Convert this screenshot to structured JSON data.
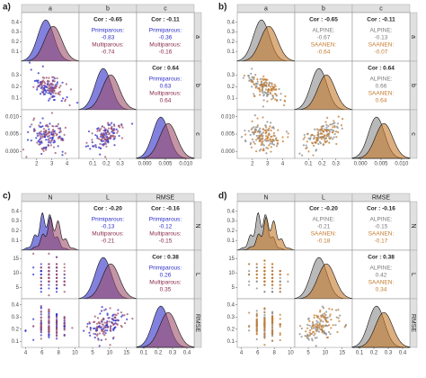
{
  "panels": [
    {
      "label": "a)",
      "vars": [
        "a",
        "b",
        "c"
      ],
      "colors": [
        "#2f2fc8",
        "#9c4f6c"
      ],
      "text_colors": [
        "#2f2fc8",
        "#8a2a4a"
      ],
      "density_lim": [
        0,
        0.5
      ],
      "density_ticks": [
        0.1,
        0.2,
        0.3,
        0.4
      ],
      "axes": [
        {
          "lim": [
            1,
            4.8
          ],
          "ticks": [
            2,
            3,
            4
          ]
        },
        {
          "lim": [
            0,
            0.42
          ],
          "ticks": [
            0.1,
            0.2,
            0.3
          ]
        },
        {
          "lim": [
            -0.002,
            0.012
          ],
          "ticks": [
            {
              "value": 0,
              "label": "0.000"
            },
            {
              "value": 0.005,
              "label": "0.005"
            },
            {
              "value": 0.01,
              "label": "0.010"
            }
          ]
        }
      ],
      "cor": [
        {
          "total": "Cor : -0.65",
          "g1": "Primiparous:",
          "v1": "-0.83",
          "g2": "Multiparous:",
          "v2": "-0.74"
        },
        {
          "total": "Cor : -0.11",
          "g1": "Primiparous:",
          "v1": "-0.36",
          "g2": "Multiparous:",
          "v2": "-0.16"
        },
        {
          "total": "Cor : 0.64",
          "g1": "Primiparous:",
          "v1": "0.63",
          "g2": "Multiparous:",
          "v2": "0.64"
        }
      ]
    },
    {
      "label": "b)",
      "vars": [
        "a",
        "b",
        "c"
      ],
      "colors": [
        "#8a8a8a",
        "#c47a2c"
      ],
      "text_colors": [
        "#7a7a7a",
        "#c47a2c"
      ],
      "density_lim": [
        0,
        0.5
      ],
      "density_ticks": [
        0.1,
        0.2,
        0.3,
        0.4
      ],
      "axes": [
        {
          "lim": [
            1,
            4.8
          ],
          "ticks": [
            2,
            3,
            4
          ]
        },
        {
          "lim": [
            0,
            0.42
          ],
          "ticks": [
            0.1,
            0.2,
            0.3
          ]
        },
        {
          "lim": [
            -0.002,
            0.012
          ],
          "ticks": [
            {
              "value": 0,
              "label": "0.000"
            },
            {
              "value": 0.005,
              "label": "0.005"
            },
            {
              "value": 0.01,
              "label": "0.010"
            }
          ]
        }
      ],
      "cor": [
        {
          "total": "Cor : -0.65",
          "g1": "ALPINE:",
          "v1": "-0.67",
          "g2": "SAANEN:",
          "v2": "-0.64"
        },
        {
          "total": "Cor : -0.11",
          "g1": "ALPINE:",
          "v1": "-0.13",
          "g2": "SAANEN:",
          "v2": "-0.07"
        },
        {
          "total": "Cor : 0.64",
          "g1": "ALPINE:",
          "v1": "0.66",
          "g2": "SAANEN:",
          "v2": "0.64"
        }
      ]
    },
    {
      "label": "c)",
      "vars": [
        "N",
        "L",
        "RMSE"
      ],
      "colors": [
        "#2f2fc8",
        "#9c4f6c"
      ],
      "text_colors": [
        "#2f2fc8",
        "#8a2a4a"
      ],
      "density_lim": [
        0,
        0.5
      ],
      "density_ticks": [
        0.1,
        0.2,
        0.3,
        0.4
      ],
      "axes": [
        {
          "lim": [
            3.5,
            10.5
          ],
          "ticks": [
            4,
            6,
            8,
            10
          ]
        },
        {
          "lim": [
            1,
            18
          ],
          "ticks": [
            5,
            10,
            15
          ]
        },
        {
          "lim": [
            0.05,
            0.45
          ],
          "ticks": [
            0.1,
            0.2,
            0.3,
            0.4
          ]
        }
      ],
      "cor": [
        {
          "total": "Cor : -0.20",
          "g1": "Primiparous:",
          "v1": "-0.13",
          "g2": "Multiparous:",
          "v2": "-0.21"
        },
        {
          "total": "Cor : -0.16",
          "g1": "Primiparous:",
          "v1": "-0.12",
          "g2": "Multiparous:",
          "v2": "-0.15"
        },
        {
          "total": "Cor : 0.38",
          "g1": "Primiparous:",
          "v1": "0.26",
          "g2": "Multiparous:",
          "v2": "0.35"
        }
      ]
    },
    {
      "label": "d)",
      "vars": [
        "N",
        "L",
        "RMSE"
      ],
      "colors": [
        "#8a8a8a",
        "#c47a2c"
      ],
      "text_colors": [
        "#7a7a7a",
        "#c47a2c"
      ],
      "density_lim": [
        0,
        0.5
      ],
      "density_ticks": [
        0.1,
        0.2,
        0.3,
        0.4
      ],
      "axes": [
        {
          "lim": [
            3.5,
            10.5
          ],
          "ticks": [
            4,
            6,
            8,
            10
          ]
        },
        {
          "lim": [
            1,
            18
          ],
          "ticks": [
            5,
            10,
            15
          ]
        },
        {
          "lim": [
            0.05,
            0.45
          ],
          "ticks": [
            0.1,
            0.2,
            0.3,
            0.4
          ]
        }
      ],
      "cor": [
        {
          "total": "Cor : -0.20",
          "g1": "ALPINE:",
          "v1": "-0.21",
          "g2": "SAANEN:",
          "v2": "-0.18"
        },
        {
          "total": "Cor : -0.16",
          "g1": "ALPINE:",
          "v1": "-0.15",
          "g2": "SAANEN:",
          "v2": "-0.17"
        },
        {
          "total": "Cor : 0.38",
          "g1": "ALPINE:",
          "v1": "0.42",
          "g2": "SAANEN:",
          "v2": "0.34"
        }
      ]
    }
  ]
}
